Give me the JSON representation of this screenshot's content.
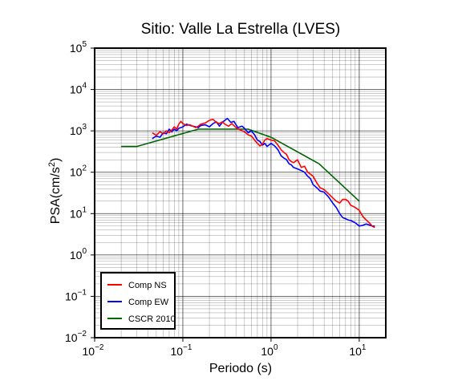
{
  "chart_data": {
    "type": "line",
    "title": "Sitio: Valle La Estrella (LVES)",
    "xlabel": "Periodo (s)",
    "ylabel": "PSA(cm/s²)",
    "x_scale": "log",
    "y_scale": "log",
    "xlim": [
      0.01,
      20
    ],
    "ylim": [
      0.01,
      100000
    ],
    "grid": true,
    "legend_position": "bottom-left",
    "x_ticks": [
      {
        "base": "10",
        "exp": "−2"
      },
      {
        "base": "10",
        "exp": "−1"
      },
      {
        "base": "10",
        "exp": "0"
      },
      {
        "base": "10",
        "exp": "1"
      }
    ],
    "y_ticks": [
      {
        "base": "10",
        "exp": "−2"
      },
      {
        "base": "10",
        "exp": "−1"
      },
      {
        "base": "10",
        "exp": "0"
      },
      {
        "base": "10",
        "exp": "1"
      },
      {
        "base": "10",
        "exp": "2"
      },
      {
        "base": "10",
        "exp": "3"
      },
      {
        "base": "10",
        "exp": "4"
      },
      {
        "base": "10",
        "exp": "5"
      }
    ],
    "series": [
      {
        "name": "Comp NS",
        "color": "#ff0000",
        "points": [
          [
            0.045,
            900
          ],
          [
            0.05,
            780
          ],
          [
            0.055,
            950
          ],
          [
            0.06,
            850
          ],
          [
            0.065,
            1000
          ],
          [
            0.07,
            900
          ],
          [
            0.075,
            1050
          ],
          [
            0.08,
            1250
          ],
          [
            0.085,
            1100
          ],
          [
            0.09,
            1450
          ],
          [
            0.095,
            1700
          ],
          [
            0.1,
            1500
          ],
          [
            0.11,
            1350
          ],
          [
            0.12,
            1400
          ],
          [
            0.13,
            1300
          ],
          [
            0.14,
            1200
          ],
          [
            0.15,
            1300
          ],
          [
            0.16,
            1450
          ],
          [
            0.18,
            1550
          ],
          [
            0.2,
            1800
          ],
          [
            0.22,
            1900
          ],
          [
            0.24,
            1600
          ],
          [
            0.26,
            1500
          ],
          [
            0.28,
            1650
          ],
          [
            0.3,
            1450
          ],
          [
            0.33,
            1300
          ],
          [
            0.36,
            1500
          ],
          [
            0.4,
            1200
          ],
          [
            0.45,
            1050
          ],
          [
            0.5,
            950
          ],
          [
            0.55,
            800
          ],
          [
            0.6,
            750
          ],
          [
            0.65,
            600
          ],
          [
            0.7,
            500
          ],
          [
            0.75,
            430
          ],
          [
            0.8,
            480
          ],
          [
            0.85,
            600
          ],
          [
            0.9,
            650
          ],
          [
            1.0,
            600
          ],
          [
            1.1,
            570
          ],
          [
            1.2,
            450
          ],
          [
            1.3,
            350
          ],
          [
            1.4,
            300
          ],
          [
            1.5,
            270
          ],
          [
            1.6,
            200
          ],
          [
            1.7,
            180
          ],
          [
            1.8,
            170
          ],
          [
            2.0,
            200
          ],
          [
            2.2,
            130
          ],
          [
            2.4,
            140
          ],
          [
            2.6,
            100
          ],
          [
            2.8,
            90
          ],
          [
            3.0,
            80
          ],
          [
            3.3,
            55
          ],
          [
            3.6,
            42
          ],
          [
            4.0,
            38
          ],
          [
            4.5,
            30
          ],
          [
            5.0,
            24
          ],
          [
            5.5,
            20
          ],
          [
            6.0,
            18
          ],
          [
            6.5,
            22
          ],
          [
            7.0,
            22
          ],
          [
            7.5,
            20
          ],
          [
            8.0,
            16
          ],
          [
            9.0,
            14
          ],
          [
            10.0,
            12
          ],
          [
            11.0,
            8.5
          ],
          [
            12.0,
            7
          ],
          [
            13.0,
            6
          ],
          [
            14.0,
            5
          ],
          [
            15.0,
            4.6
          ]
        ]
      },
      {
        "name": "Comp EW",
        "color": "#0000ff",
        "points": [
          [
            0.045,
            650
          ],
          [
            0.05,
            750
          ],
          [
            0.055,
            700
          ],
          [
            0.06,
            900
          ],
          [
            0.065,
            850
          ],
          [
            0.07,
            1100
          ],
          [
            0.075,
            950
          ],
          [
            0.08,
            1100
          ],
          [
            0.085,
            1000
          ],
          [
            0.09,
            1150
          ],
          [
            0.1,
            1250
          ],
          [
            0.11,
            1450
          ],
          [
            0.12,
            1350
          ],
          [
            0.13,
            1300
          ],
          [
            0.14,
            1250
          ],
          [
            0.15,
            1200
          ],
          [
            0.16,
            1350
          ],
          [
            0.18,
            1400
          ],
          [
            0.2,
            1250
          ],
          [
            0.22,
            1500
          ],
          [
            0.24,
            1650
          ],
          [
            0.26,
            1300
          ],
          [
            0.28,
            1600
          ],
          [
            0.3,
            1800
          ],
          [
            0.32,
            2000
          ],
          [
            0.35,
            1600
          ],
          [
            0.38,
            1700
          ],
          [
            0.42,
            1200
          ],
          [
            0.47,
            1300
          ],
          [
            0.5,
            1150
          ],
          [
            0.55,
            900
          ],
          [
            0.6,
            1000
          ],
          [
            0.65,
            800
          ],
          [
            0.7,
            600
          ],
          [
            0.75,
            550
          ],
          [
            0.8,
            450
          ],
          [
            0.85,
            500
          ],
          [
            0.9,
            420
          ],
          [
            1.0,
            500
          ],
          [
            1.1,
            430
          ],
          [
            1.2,
            350
          ],
          [
            1.3,
            250
          ],
          [
            1.4,
            220
          ],
          [
            1.5,
            200
          ],
          [
            1.6,
            160
          ],
          [
            1.7,
            150
          ],
          [
            1.8,
            130
          ],
          [
            2.0,
            120
          ],
          [
            2.2,
            110
          ],
          [
            2.4,
            100
          ],
          [
            2.6,
            80
          ],
          [
            2.8,
            70
          ],
          [
            3.0,
            50
          ],
          [
            3.3,
            42
          ],
          [
            3.6,
            35
          ],
          [
            4.0,
            33
          ],
          [
            4.5,
            25
          ],
          [
            5.0,
            18
          ],
          [
            5.5,
            14
          ],
          [
            6.0,
            10
          ],
          [
            6.5,
            8
          ],
          [
            7.0,
            7.5
          ],
          [
            7.5,
            7
          ],
          [
            8.0,
            6.8
          ],
          [
            9.0,
            6
          ],
          [
            10.0,
            5
          ],
          [
            11.0,
            5.2
          ],
          [
            12.0,
            5.6
          ],
          [
            13.0,
            5.3
          ],
          [
            14.0,
            5.0
          ],
          [
            15.0,
            5.0
          ]
        ]
      },
      {
        "name": "CSCR 2010",
        "color": "#006400",
        "points": [
          [
            0.02,
            420
          ],
          [
            0.03,
            420
          ],
          [
            0.15,
            1100
          ],
          [
            0.55,
            1100
          ],
          [
            1.0,
            700
          ],
          [
            3.5,
            160
          ],
          [
            10.0,
            20
          ]
        ]
      }
    ]
  }
}
